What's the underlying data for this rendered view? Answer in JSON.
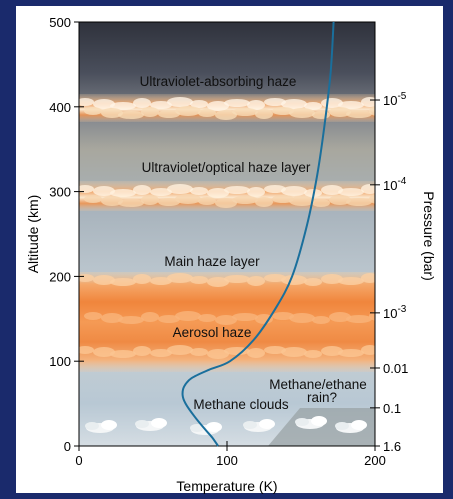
{
  "colors": {
    "frame": "#1a2a6c",
    "curve": "#1a6f9c",
    "haze_orange": "#f08a3a",
    "sky_top": "#3a3d48",
    "sky_bottom": "#c9d6e0"
  },
  "chart_data": {
    "type": "line",
    "xlabel": "Temperature (K)",
    "ylabel": "Altitude (km)",
    "right_label": "Pressure (bar)",
    "xlim": [
      0,
      200
    ],
    "ylim": [
      0,
      500
    ],
    "x_ticks": [
      {
        "v": 0,
        "label": "0"
      },
      {
        "v": 100,
        "label": "100"
      },
      {
        "v": 200,
        "label": "200"
      }
    ],
    "y_ticks": [
      {
        "v": 0,
        "label": "0"
      },
      {
        "v": 100,
        "label": "100"
      },
      {
        "v": 200,
        "label": "200"
      },
      {
        "v": 300,
        "label": "300"
      },
      {
        "v": 400,
        "label": "400"
      },
      {
        "v": 500,
        "label": "500"
      }
    ],
    "pressure_ticks": [
      {
        "alt": 408,
        "base": "10",
        "exp": "-5"
      },
      {
        "alt": 308,
        "base": "10",
        "exp": "-4"
      },
      {
        "alt": 157,
        "base": "10",
        "exp": "-3"
      },
      {
        "alt": 92,
        "base": "0.01",
        "exp": ""
      },
      {
        "alt": 45,
        "base": "0.1",
        "exp": ""
      },
      {
        "alt": 0,
        "base": "1.6",
        "exp": ""
      }
    ],
    "layers": [
      {
        "label": "Ultraviolet-absorbing haze",
        "alt": 438
      },
      {
        "label": "Ultraviolet/optical haze layer",
        "alt": 341
      },
      {
        "label": "Main haze layer",
        "alt": 226
      },
      {
        "label": "Aerosol haze",
        "alt": 141
      },
      {
        "label": "Methane/ethane",
        "alt": 78
      },
      {
        "label": "rain?",
        "alt": 63
      },
      {
        "label": "Methane clouds",
        "alt": 51
      }
    ],
    "series": [
      {
        "x": [
          94,
          90,
          85,
          78,
          72,
          70,
          71,
          76,
          88,
          102,
          118,
          132,
          144,
          154,
          161,
          166,
          170,
          172
        ],
        "y": [
          0,
          10,
          20,
          35,
          50,
          60,
          70,
          80,
          90,
          100,
          125,
          160,
          200,
          260,
          320,
          380,
          440,
          500
        ]
      }
    ]
  }
}
